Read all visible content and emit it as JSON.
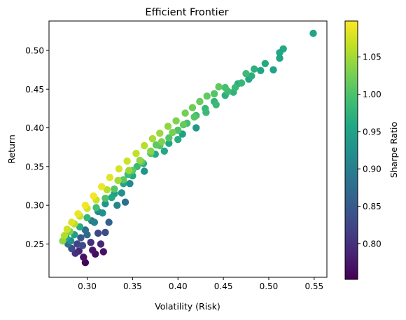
{
  "chart_data": {
    "type": "scatter",
    "title": "Efficient Frontier",
    "xlabel": "Volatility (Risk)",
    "ylabel": "Return",
    "xlim": [
      0.258,
      0.564
    ],
    "ylim": [
      0.207,
      0.538
    ],
    "xticks": [
      "0.30",
      "0.35",
      "0.40",
      "0.45",
      "0.50",
      "0.55"
    ],
    "yticks": [
      "0.25",
      "0.30",
      "0.35",
      "0.40",
      "0.45",
      "0.50"
    ],
    "grid": false,
    "legend": "none",
    "colorbar": {
      "label": "Sharpe Ratio",
      "colormap": "viridis",
      "range": [
        0.752,
        1.098
      ],
      "ticks": [
        "0.80",
        "0.85",
        "0.90",
        "0.95",
        "1.00",
        "1.05"
      ]
    },
    "series": [
      {
        "points": [
          [
            0.549,
            0.522,
            0.952
          ],
          [
            0.516,
            0.502,
            0.96
          ],
          [
            0.512,
            0.497,
            0.957
          ],
          [
            0.512,
            0.49,
            0.954
          ],
          [
            0.496,
            0.483,
            0.962
          ],
          [
            0.491,
            0.474,
            0.955
          ],
          [
            0.484,
            0.476,
            0.972
          ],
          [
            0.481,
            0.467,
            0.968
          ],
          [
            0.475,
            0.47,
            0.985
          ],
          [
            0.466,
            0.457,
            0.968
          ],
          [
            0.478,
            0.463,
            0.958
          ],
          [
            0.452,
            0.452,
            0.995
          ],
          [
            0.445,
            0.453,
            1.012
          ],
          [
            0.44,
            0.444,
            1.004
          ],
          [
            0.432,
            0.441,
            1.013
          ],
          [
            0.424,
            0.434,
            1.017
          ],
          [
            0.416,
            0.426,
            1.02
          ],
          [
            0.408,
            0.419,
            1.025
          ],
          [
            0.398,
            0.409,
            1.032
          ],
          [
            0.389,
            0.402,
            1.04
          ],
          [
            0.38,
            0.393,
            1.046
          ],
          [
            0.372,
            0.386,
            1.053
          ],
          [
            0.363,
            0.377,
            1.06
          ],
          [
            0.354,
            0.367,
            1.066
          ],
          [
            0.344,
            0.357,
            1.072
          ],
          [
            0.335,
            0.347,
            1.078
          ],
          [
            0.325,
            0.336,
            1.084
          ],
          [
            0.316,
            0.324,
            1.09
          ],
          [
            0.307,
            0.312,
            1.093
          ],
          [
            0.298,
            0.3,
            1.092
          ],
          [
            0.29,
            0.289,
            1.088
          ],
          [
            0.283,
            0.278,
            1.082
          ],
          [
            0.278,
            0.269,
            1.072
          ],
          [
            0.275,
            0.261,
            1.058
          ],
          [
            0.273,
            0.254,
            1.04
          ],
          [
            0.452,
            0.442,
            0.972
          ],
          [
            0.44,
            0.434,
            0.978
          ],
          [
            0.43,
            0.425,
            0.984
          ],
          [
            0.42,
            0.416,
            0.99
          ],
          [
            0.41,
            0.406,
            0.996
          ],
          [
            0.4,
            0.397,
            1.0
          ],
          [
            0.39,
            0.387,
            1.004
          ],
          [
            0.38,
            0.377,
            1.006
          ],
          [
            0.37,
            0.367,
            1.008
          ],
          [
            0.36,
            0.356,
            1.01
          ],
          [
            0.35,
            0.345,
            1.01
          ],
          [
            0.34,
            0.333,
            1.008
          ],
          [
            0.33,
            0.321,
            1.005
          ],
          [
            0.32,
            0.309,
            1.0
          ],
          [
            0.31,
            0.297,
            0.992
          ],
          [
            0.3,
            0.284,
            0.98
          ],
          [
            0.292,
            0.272,
            0.965
          ],
          [
            0.286,
            0.262,
            0.945
          ],
          [
            0.282,
            0.254,
            0.925
          ],
          [
            0.42,
            0.4,
            0.935
          ],
          [
            0.405,
            0.392,
            0.948
          ],
          [
            0.39,
            0.38,
            0.958
          ],
          [
            0.375,
            0.366,
            0.962
          ],
          [
            0.362,
            0.354,
            0.968
          ],
          [
            0.35,
            0.338,
            0.958
          ],
          [
            0.34,
            0.328,
            0.955
          ],
          [
            0.33,
            0.315,
            0.945
          ],
          [
            0.32,
            0.302,
            0.93
          ],
          [
            0.312,
            0.292,
            0.918
          ],
          [
            0.305,
            0.28,
            0.9
          ],
          [
            0.298,
            0.268,
            0.875
          ],
          [
            0.293,
            0.258,
            0.85
          ],
          [
            0.289,
            0.25,
            0.82
          ],
          [
            0.291,
            0.241,
            0.79
          ],
          [
            0.296,
            0.233,
            0.77
          ],
          [
            0.298,
            0.226,
            0.755
          ],
          [
            0.309,
            0.237,
            0.765
          ],
          [
            0.306,
            0.242,
            0.772
          ],
          [
            0.318,
            0.24,
            0.768
          ],
          [
            0.315,
            0.25,
            0.79
          ],
          [
            0.304,
            0.252,
            0.8
          ],
          [
            0.312,
            0.264,
            0.825
          ],
          [
            0.32,
            0.265,
            0.83
          ],
          [
            0.324,
            0.278,
            0.86
          ],
          [
            0.333,
            0.3,
            0.91
          ],
          [
            0.338,
            0.316,
            0.925
          ],
          [
            0.342,
            0.304,
            0.88
          ],
          [
            0.347,
            0.328,
            0.915
          ],
          [
            0.363,
            0.344,
            0.93
          ],
          [
            0.385,
            0.37,
            0.96
          ],
          [
            0.4,
            0.385,
            0.965
          ],
          [
            0.431,
            0.42,
            0.985
          ],
          [
            0.442,
            0.43,
            0.985
          ],
          [
            0.461,
            0.446,
            0.975
          ],
          [
            0.455,
            0.447,
            0.99
          ],
          [
            0.47,
            0.458,
            0.982
          ],
          [
            0.463,
            0.452,
            0.985
          ],
          [
            0.505,
            0.475,
            0.95
          ],
          [
            0.376,
            0.378,
            1.01
          ],
          [
            0.355,
            0.35,
            0.985
          ],
          [
            0.345,
            0.34,
            0.99
          ],
          [
            0.327,
            0.31,
            0.96
          ],
          [
            0.317,
            0.29,
            0.925
          ],
          [
            0.308,
            0.278,
            0.905
          ],
          [
            0.3,
            0.262,
            0.87
          ],
          [
            0.295,
            0.248,
            0.83
          ],
          [
            0.287,
            0.238,
            0.8
          ],
          [
            0.283,
            0.244,
            0.83
          ],
          [
            0.279,
            0.25,
            0.88
          ],
          [
            0.277,
            0.258,
            0.96
          ],
          [
            0.281,
            0.266,
            1.03
          ],
          [
            0.286,
            0.276,
            1.06
          ],
          [
            0.292,
            0.286,
            1.07
          ],
          [
            0.3,
            0.296,
            1.075
          ],
          [
            0.31,
            0.307,
            1.07
          ],
          [
            0.322,
            0.32,
            1.06
          ],
          [
            0.334,
            0.332,
            1.05
          ],
          [
            0.346,
            0.345,
            1.045
          ],
          [
            0.358,
            0.358,
            1.04
          ],
          [
            0.37,
            0.37,
            1.035
          ],
          [
            0.382,
            0.382,
            1.03
          ],
          [
            0.394,
            0.394,
            1.025
          ],
          [
            0.406,
            0.404,
            1.015
          ],
          [
            0.418,
            0.414,
            1.005
          ]
        ]
      }
    ]
  }
}
